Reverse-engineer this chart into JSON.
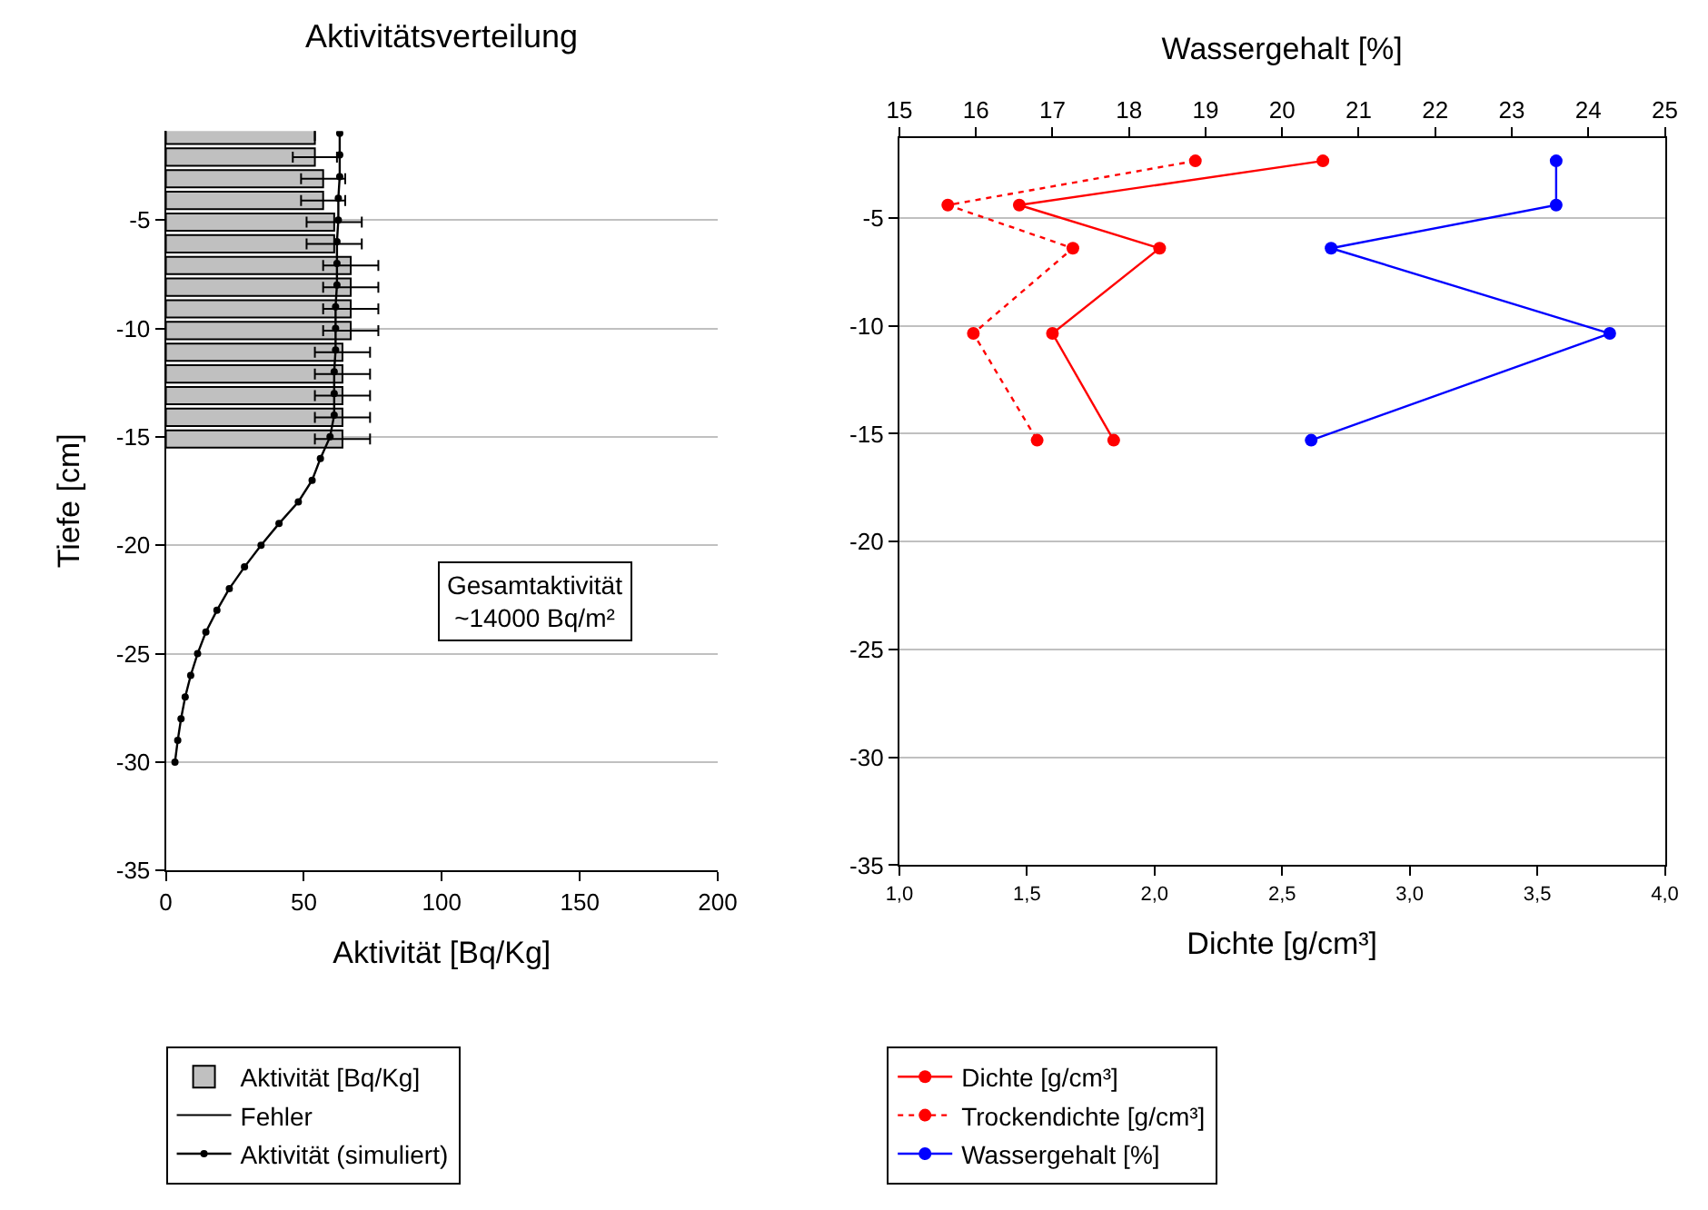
{
  "chart_data": [
    {
      "type": "bar",
      "orientation": "horizontal",
      "title": "Aktivitätsverteilung",
      "xlabel": "Aktivität [Bq/Kg]",
      "ylabel": "Tiefe [cm]",
      "xlim": [
        0,
        200
      ],
      "xticks": [
        0,
        50,
        100,
        150,
        200
      ],
      "ylim": [
        -35,
        -0.9
      ],
      "yticks": [
        -5,
        -10,
        -15,
        -20,
        -25,
        -30,
        -35
      ],
      "grid": "y",
      "legend": "bottom",
      "annotations": [
        "Gesamtaktivität\n~14000 Bq/m²"
      ],
      "series": [
        {
          "name": "Aktivität [Bq/Kg]",
          "type": "bar",
          "color": "#c0c0c0",
          "x": [
            -1.1,
            -2.1,
            -3.1,
            -4.1,
            -5.1,
            -6.1,
            -7.1,
            -8.1,
            -9.1,
            -10.1,
            -11.1,
            -12.1,
            -13.1,
            -14.1,
            -15.1
          ],
          "values": [
            54,
            54,
            57,
            57,
            61,
            61,
            67,
            67,
            67,
            67,
            64,
            64,
            64,
            64,
            64
          ],
          "errors": [
            null,
            8,
            8,
            8,
            10,
            10,
            10,
            10,
            10,
            10,
            10,
            10,
            10,
            10,
            10
          ]
        },
        {
          "name": "Fehler",
          "type": "line",
          "color": "#000000"
        },
        {
          "name": "Aktivität (simuliert)",
          "type": "line",
          "color": "#000000",
          "marker": "circle",
          "x": [
            -1,
            -2,
            -3,
            -4,
            -5,
            -6,
            -7,
            -8,
            -9,
            -10,
            -11,
            -12,
            -13,
            -14,
            -15,
            -16,
            -17,
            -18,
            -19,
            -20,
            -21,
            -22,
            -23,
            -24,
            -25,
            -26,
            -27,
            -28,
            -29,
            -30
          ],
          "values": [
            63,
            63,
            63,
            62.5,
            62.5,
            62,
            62,
            62,
            61.5,
            61.5,
            61.5,
            61,
            61,
            61,
            59.5,
            56,
            53,
            48,
            41,
            34.5,
            28.5,
            23,
            18.5,
            14.5,
            11.5,
            9,
            7,
            5.5,
            4.3,
            3.3
          ]
        }
      ]
    },
    {
      "type": "line",
      "orientation": "horizontal",
      "xlabel": "Dichte [g/cm³]",
      "x2label": "Wassergehalt [%]",
      "xlim": [
        1,
        4
      ],
      "xticks": [
        {
          "value": 1,
          "label": "1,0"
        },
        {
          "value": 1.5,
          "label": "1,5"
        },
        {
          "value": 2,
          "label": "2,0"
        },
        {
          "value": 2.5,
          "label": "2,5"
        },
        {
          "value": 3,
          "label": "3,0"
        },
        {
          "value": 3.5,
          "label": "3,5"
        },
        {
          "value": 4,
          "label": "4,0"
        }
      ],
      "x2lim": [
        15,
        25
      ],
      "x2ticks": [
        15,
        16,
        17,
        18,
        19,
        20,
        21,
        22,
        23,
        24,
        25
      ],
      "ylim": [
        -35,
        -1.3
      ],
      "yticks": [
        -5,
        -10,
        -15,
        -20,
        -25,
        -30,
        -35
      ],
      "grid": "y",
      "legend": "bottom",
      "marker": "circle",
      "series": [
        {
          "name": "Dichte [g/cm³]",
          "color": "#ff0000",
          "line_style": "solid",
          "x": [
            -2.35,
            -4.4,
            -6.4,
            -10.35,
            -15.3
          ],
          "values": [
            2.66,
            1.47,
            2.02,
            1.6,
            1.84
          ]
        },
        {
          "name": "Trockendichte [g/cm³]",
          "color": "#ff0000",
          "line_style": "dotted",
          "x": [
            -2.35,
            -4.4,
            -6.4,
            -10.35,
            -15.3
          ],
          "values": [
            2.16,
            1.19,
            1.68,
            1.29,
            1.54
          ]
        },
        {
          "name": "Wassergehalt [%]",
          "color": "#0000ff",
          "line_style": "solid",
          "axis": "x2",
          "x": [
            -2.35,
            -4.4,
            -6.4,
            -10.35,
            -15.3
          ],
          "values": [
            23.58,
            23.58,
            20.64,
            24.28,
            20.38
          ]
        }
      ]
    }
  ]
}
